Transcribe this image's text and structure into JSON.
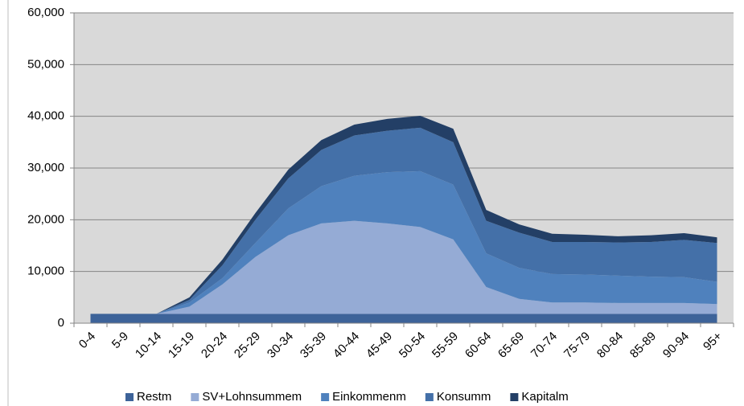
{
  "chart_data": {
    "type": "stacked-area",
    "categories": [
      "0-4",
      "5-9",
      "10-14",
      "15-19",
      "20-24",
      "25-29",
      "30-34",
      "35-39",
      "40-44",
      "45-49",
      "50-54",
      "55-59",
      "60-64",
      "65-69",
      "70-74",
      "75-79",
      "80-84",
      "85-89",
      "90-94",
      "95+"
    ],
    "series": [
      {
        "name": "Restm",
        "color": "#3d6399",
        "values": [
          1800,
          1800,
          1800,
          1800,
          1800,
          1800,
          1800,
          1800,
          1800,
          1800,
          1800,
          1800,
          1800,
          1800,
          1800,
          1800,
          1800,
          1800,
          1800,
          1800
        ]
      },
      {
        "name": "SV+Lohnsummem",
        "color": "#95abd5",
        "values": [
          0,
          0,
          0,
          1400,
          5700,
          11000,
          15200,
          17500,
          18000,
          17500,
          16800,
          14400,
          5200,
          2900,
          2200,
          2200,
          2100,
          2100,
          2100,
          1900
        ]
      },
      {
        "name": "Einkommenm",
        "color": "#4f81bd",
        "values": [
          0,
          0,
          0,
          800,
          1200,
          2700,
          5200,
          7200,
          8700,
          9900,
          10800,
          10600,
          6500,
          6000,
          5500,
          5400,
          5300,
          5100,
          5000,
          4300
        ]
      },
      {
        "name": "Konsumm",
        "color": "#4470a8",
        "values": [
          0,
          0,
          0,
          500,
          2500,
          4500,
          5800,
          7000,
          7800,
          8000,
          8400,
          8200,
          6300,
          6800,
          6200,
          6300,
          6400,
          6700,
          7200,
          7500
        ]
      },
      {
        "name": "Kapitalm",
        "color": "#233f66",
        "values": [
          0,
          0,
          0,
          500,
          1100,
          1300,
          1700,
          1900,
          2100,
          2300,
          2300,
          2600,
          2100,
          1600,
          1600,
          1400,
          1200,
          1300,
          1300,
          1100
        ]
      }
    ],
    "ylim": [
      0,
      60000
    ],
    "yticks": [
      0,
      {
        "value": 10000,
        "label": "10,000"
      },
      {
        "value": 20000,
        "label": "20,000"
      },
      {
        "value": 30000,
        "label": "30,000"
      },
      {
        "value": 40000,
        "label": "40,000"
      },
      {
        "value": 50000,
        "label": "50,000"
      },
      {
        "value": 60000,
        "label": "60,000"
      }
    ],
    "grid": true,
    "legend": "bottom"
  }
}
